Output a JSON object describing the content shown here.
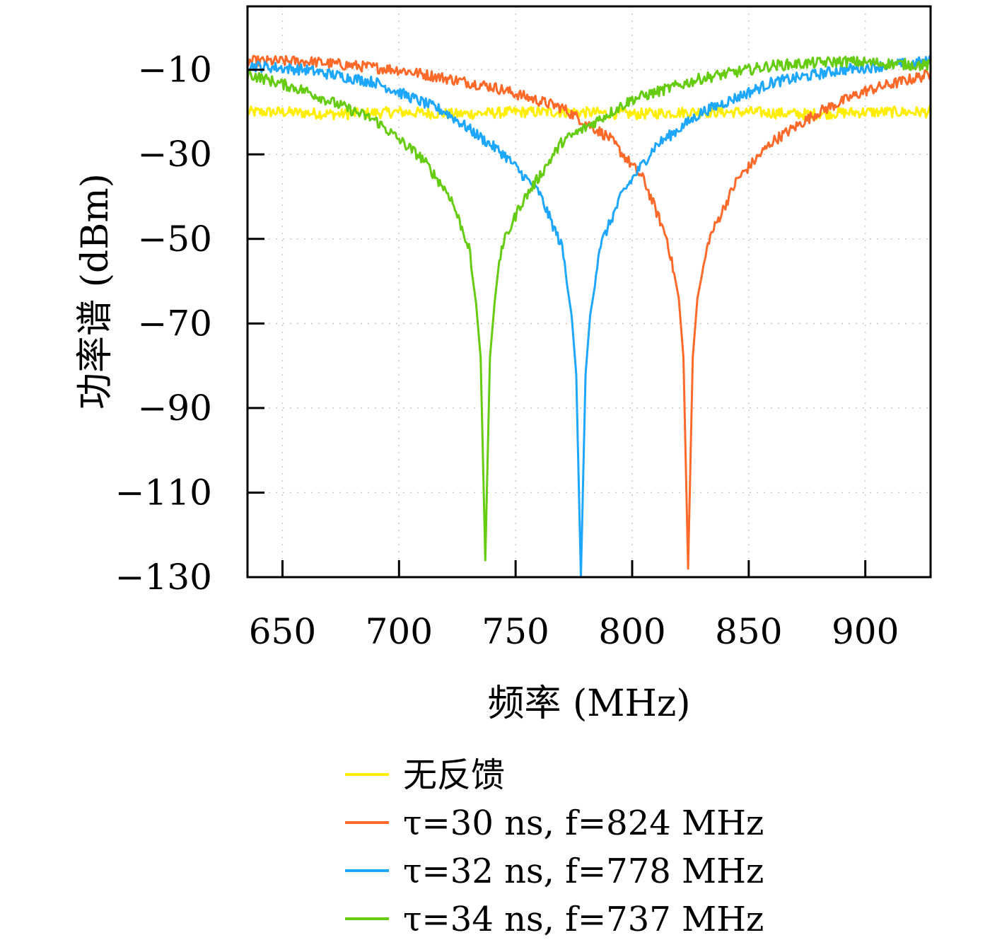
{
  "chart_data": {
    "type": "line",
    "xlabel": "频率 (MHz)",
    "ylabel": "功率谱 (dBm)",
    "xlim": [
      635,
      928
    ],
    "ylim": [
      -130,
      5
    ],
    "xticks": [
      650,
      700,
      750,
      800,
      850,
      900
    ],
    "yticks": [
      -10,
      -30,
      -50,
      -70,
      -90,
      -110,
      -130
    ],
    "xtick_labels": [
      "650",
      "700",
      "750",
      "800",
      "850",
      "900"
    ],
    "ytick_labels": [
      "−10",
      "−30",
      "−50",
      "−70",
      "−90",
      "−110",
      "−130"
    ],
    "grid": true,
    "legend_position": "bottom",
    "series": [
      {
        "name": "无反馈",
        "color": "#ffee00",
        "notch_freq": null,
        "x": [
          635,
          650,
          675,
          700,
          725,
          750,
          775,
          800,
          825,
          850,
          875,
          900,
          928
        ],
        "y": [
          -20,
          -20,
          -20.5,
          -20,
          -20.5,
          -20,
          -20,
          -20.5,
          -20,
          -20,
          -20.5,
          -20,
          -20
        ]
      },
      {
        "name": "τ=30 ns, f=824 MHz",
        "color": "#ff6a2a",
        "notch_freq": 824,
        "x": [
          635,
          660,
          700,
          740,
          770,
          790,
          805,
          815,
          820,
          822,
          824,
          826,
          828,
          833,
          845,
          860,
          880,
          900,
          928
        ],
        "y": [
          -8,
          -8,
          -10,
          -14,
          -19,
          -26,
          -36,
          -50,
          -64,
          -78,
          -128,
          -78,
          -64,
          -50,
          -36,
          -27,
          -20,
          -15,
          -11
        ]
      },
      {
        "name": "τ=32 ns, f=778 MHz",
        "color": "#1ea7ff",
        "notch_freq": 778,
        "x": [
          635,
          660,
          690,
          720,
          745,
          760,
          770,
          774,
          776,
          778,
          780,
          782,
          786,
          796,
          810,
          830,
          860,
          890,
          928
        ],
        "y": [
          -9,
          -10,
          -13,
          -20,
          -30,
          -39,
          -52,
          -68,
          -82,
          -130,
          -82,
          -68,
          -52,
          -39,
          -28,
          -20,
          -13,
          -10,
          -8
        ]
      },
      {
        "name": "τ=34 ns, f=737 MHz",
        "color": "#66cc11",
        "notch_freq": 737,
        "x": [
          635,
          660,
          690,
          710,
          722,
          730,
          733,
          735,
          737,
          739,
          741,
          744,
          752,
          770,
          800,
          830,
          860,
          890,
          928
        ],
        "y": [
          -11,
          -15,
          -22,
          -31,
          -40,
          -52,
          -65,
          -78,
          -126,
          -78,
          -65,
          -52,
          -42,
          -27,
          -17,
          -12,
          -9,
          -8,
          -9
        ]
      }
    ]
  }
}
